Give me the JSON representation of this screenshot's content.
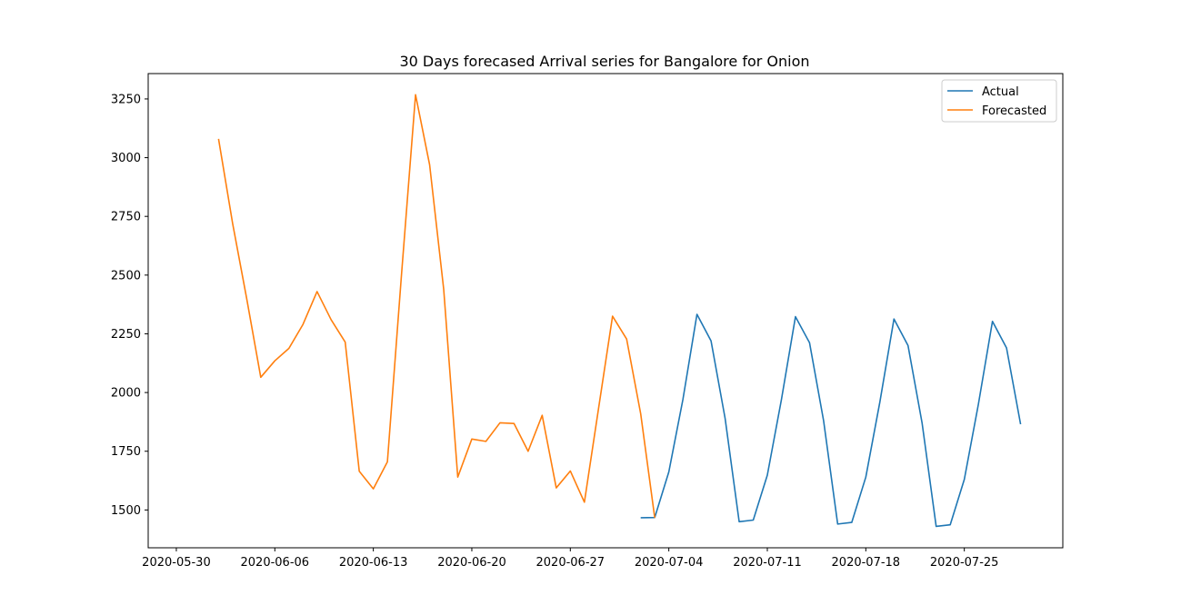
{
  "chart_data": {
    "type": "line",
    "title": "30 Days forecased Arrival series for Bangalore for Onion",
    "xlabel": "",
    "ylabel": "",
    "x_range": [
      "2020-05-28",
      "2020-08-01"
    ],
    "ylim": [
      1339,
      3358
    ],
    "x_ticks": [
      "2020-05-30",
      "2020-06-06",
      "2020-06-13",
      "2020-06-20",
      "2020-06-27",
      "2020-07-04",
      "2020-07-11",
      "2020-07-18",
      "2020-07-25"
    ],
    "y_ticks": [
      1500,
      1750,
      2000,
      2250,
      2500,
      2750,
      3000,
      3250
    ],
    "grid": false,
    "legend_position": "top-right",
    "series": [
      {
        "name": "Actual",
        "color": "#1f77b4",
        "points": [
          [
            "2020-07-02",
            1467
          ],
          [
            "2020-07-03",
            1468
          ],
          [
            "2020-07-04",
            1662
          ],
          [
            "2020-07-05",
            1970
          ],
          [
            "2020-07-06",
            2333
          ],
          [
            "2020-07-07",
            2220
          ],
          [
            "2020-07-08",
            1890
          ],
          [
            "2020-07-09",
            1450
          ],
          [
            "2020-07-10",
            1457
          ],
          [
            "2020-07-11",
            1648
          ],
          [
            "2020-07-12",
            1969
          ],
          [
            "2020-07-13",
            2323
          ],
          [
            "2020-07-14",
            2212
          ],
          [
            "2020-07-15",
            1880
          ],
          [
            "2020-07-16",
            1440
          ],
          [
            "2020-07-17",
            1447
          ],
          [
            "2020-07-18",
            1640
          ],
          [
            "2020-07-19",
            1960
          ],
          [
            "2020-07-20",
            2313
          ],
          [
            "2020-07-21",
            2200
          ],
          [
            "2020-07-22",
            1870
          ],
          [
            "2020-07-23",
            1430
          ],
          [
            "2020-07-24",
            1437
          ],
          [
            "2020-07-25",
            1630
          ],
          [
            "2020-07-26",
            1950
          ],
          [
            "2020-07-27",
            2303
          ],
          [
            "2020-07-28",
            2190
          ],
          [
            "2020-07-29",
            1865
          ]
        ]
      },
      {
        "name": "Forecasted",
        "color": "#ff7f0e",
        "points": [
          [
            "2020-06-02",
            3080
          ],
          [
            "2020-06-03",
            2720
          ],
          [
            "2020-06-04",
            2400
          ],
          [
            "2020-06-05",
            2065
          ],
          [
            "2020-06-06",
            2135
          ],
          [
            "2020-06-07",
            2188
          ],
          [
            "2020-06-08",
            2290
          ],
          [
            "2020-06-09",
            2430
          ],
          [
            "2020-06-10",
            2310
          ],
          [
            "2020-06-11",
            2215
          ],
          [
            "2020-06-12",
            1665
          ],
          [
            "2020-06-13",
            1590
          ],
          [
            "2020-06-14",
            1705
          ],
          [
            "2020-06-15",
            2500
          ],
          [
            "2020-06-16",
            3268
          ],
          [
            "2020-06-17",
            2970
          ],
          [
            "2020-06-18",
            2440
          ],
          [
            "2020-06-19",
            1640
          ],
          [
            "2020-06-20",
            1802
          ],
          [
            "2020-06-21",
            1792
          ],
          [
            "2020-06-22",
            1871
          ],
          [
            "2020-06-23",
            1868
          ],
          [
            "2020-06-24",
            1750
          ],
          [
            "2020-06-25",
            1903
          ],
          [
            "2020-06-26",
            1594
          ],
          [
            "2020-06-27",
            1666
          ],
          [
            "2020-06-28",
            1533
          ],
          [
            "2020-06-29",
            1930
          ],
          [
            "2020-06-30",
            2325
          ],
          [
            "2020-07-01",
            2228
          ],
          [
            "2020-07-02",
            1910
          ],
          [
            "2020-07-03",
            1466
          ]
        ]
      }
    ]
  }
}
